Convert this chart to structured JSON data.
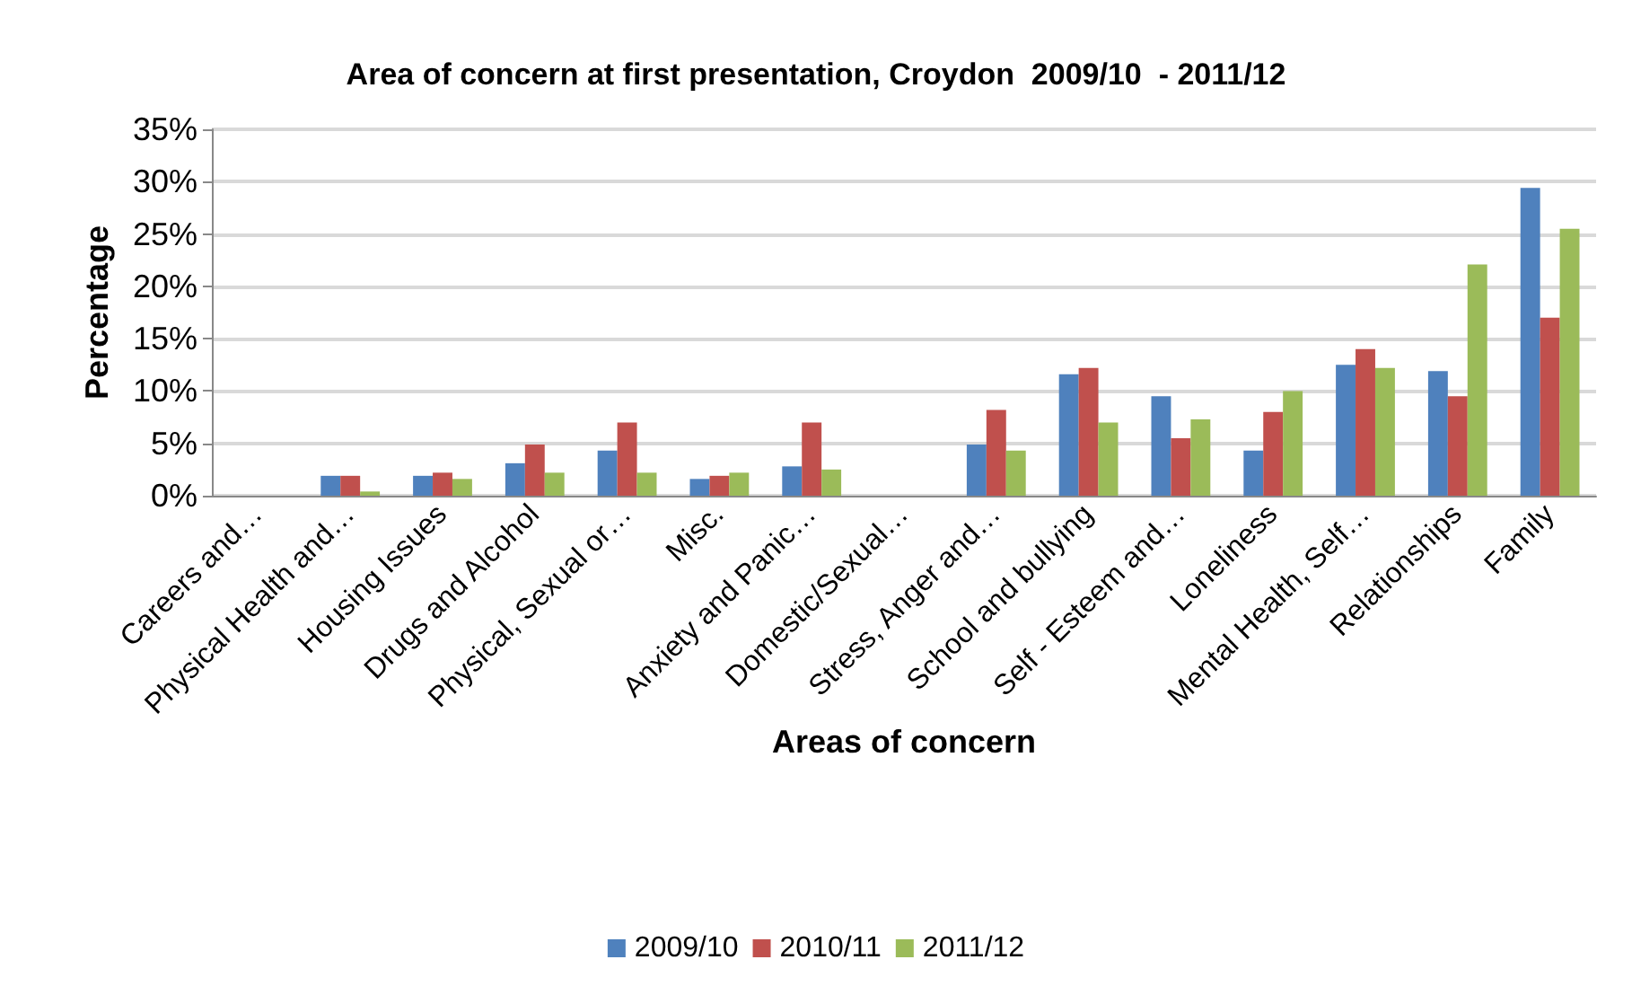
{
  "chart_data": {
    "type": "bar",
    "title": "Area of concern at first presentation, Croydon  2009/10  - 2011/12",
    "xlabel": "Areas of concern",
    "ylabel": "Percentage",
    "categories": [
      "Careers and…",
      "Physical Health and…",
      "Housing Issues",
      "Drugs and Alcohol",
      "Physical, Sexual or…",
      "Misc.",
      "Anxiety and Panic…",
      "Domestic/Sexual…",
      "Stress, Anger and…",
      "School and bullying",
      "Self - Esteem and…",
      "Loneliness",
      "Mental Health, Self…",
      "Relationships",
      "Family"
    ],
    "series": [
      {
        "name": "2009/10",
        "color": "#4f81bd",
        "values": [
          0,
          1.9,
          1.9,
          3.1,
          4.3,
          1.6,
          2.8,
          0,
          4.9,
          11.6,
          9.5,
          4.3,
          12.5,
          11.9,
          29.4
        ]
      },
      {
        "name": "2010/11",
        "color": "#c0504d",
        "values": [
          0,
          1.9,
          2.2,
          4.9,
          7.0,
          1.9,
          7.0,
          0,
          8.2,
          12.2,
          5.5,
          8.0,
          14.0,
          9.5,
          17.0
        ]
      },
      {
        "name": "2011/12",
        "color": "#9bbb59",
        "values": [
          0,
          0.4,
          1.6,
          2.2,
          2.2,
          2.2,
          2.5,
          0,
          4.3,
          7.0,
          7.3,
          10.0,
          12.2,
          22.1,
          25.5
        ]
      }
    ],
    "ylim": [
      0,
      35
    ],
    "yticks": [
      {
        "value": 0,
        "label": "0%"
      },
      {
        "value": 5,
        "label": "5%"
      },
      {
        "value": 10,
        "label": "10%"
      },
      {
        "value": 15,
        "label": "15%"
      },
      {
        "value": 20,
        "label": "20%"
      },
      {
        "value": 25,
        "label": "25%"
      },
      {
        "value": 30,
        "label": "30%"
      },
      {
        "value": 35,
        "label": "35%"
      }
    ],
    "grid": "y",
    "legend": "bottom"
  }
}
